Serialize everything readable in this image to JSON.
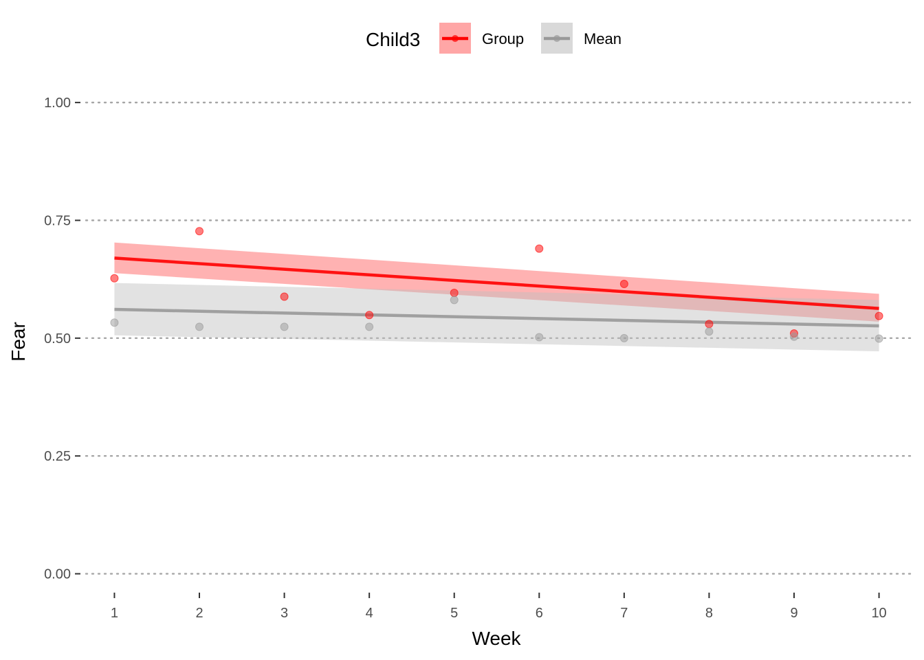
{
  "chart_data": {
    "type": "line",
    "xlabel": "Week",
    "ylabel": "Fear",
    "xlim": [
      0.6,
      10.4
    ],
    "ylim": [
      -0.04,
      1.06
    ],
    "x_ticks": [
      1,
      2,
      3,
      4,
      5,
      6,
      7,
      8,
      9,
      10
    ],
    "y_ticks": [
      0.0,
      0.25,
      0.5,
      0.75,
      1.0
    ],
    "y_tick_labels": [
      "0.00",
      "0.25",
      "0.50",
      "0.75",
      "1.00"
    ],
    "grid": "horizontal-dotted",
    "legend": {
      "title": "Child3",
      "position": "top",
      "entries": [
        "Group",
        "Mean"
      ]
    },
    "series": [
      {
        "name": "Group",
        "color": "#ff0000",
        "band_color": "#ff0000",
        "x": [
          1,
          2,
          3,
          4,
          5,
          6,
          7,
          8,
          9,
          10
        ],
        "points": [
          0.627,
          0.727,
          0.588,
          0.549,
          0.596,
          0.69,
          0.615,
          0.53,
          0.51,
          0.547
        ],
        "fit": {
          "start": 0.67,
          "end": 0.563
        },
        "ci_lower": {
          "start": 0.638,
          "end": 0.535
        },
        "ci_upper": {
          "start": 0.703,
          "end": 0.594
        }
      },
      {
        "name": "Mean",
        "color": "#999999",
        "band_color": "#bfbfbf",
        "x": [
          1,
          2,
          3,
          4,
          5,
          6,
          7,
          8,
          9,
          10
        ],
        "points": [
          0.533,
          0.524,
          0.524,
          0.524,
          0.581,
          0.502,
          0.5,
          0.514,
          0.503,
          0.499
        ],
        "fit": {
          "start": 0.561,
          "end": 0.526
        },
        "ci_lower": {
          "start": 0.506,
          "end": 0.472
        },
        "ci_upper": {
          "start": 0.617,
          "end": 0.581
        }
      }
    ]
  }
}
